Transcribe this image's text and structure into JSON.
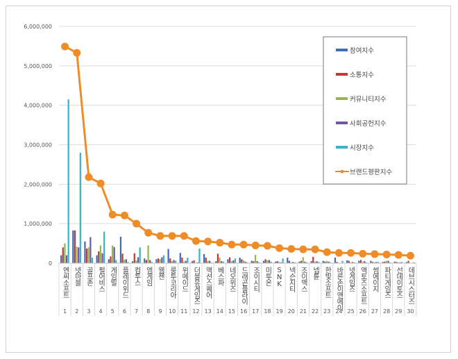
{
  "chart_data": {
    "type": "bar+line",
    "categories": [
      "엔씨소프트",
      "넷마블",
      "골프존",
      "펄어비스",
      "게임빌",
      "플레이위드",
      "컴투스",
      "엠게임",
      "웹젠",
      "룽투코리아",
      "위메이드",
      "더블유게임즈",
      "액션스퀘어",
      "베스파",
      "네오위즈",
      "드래곤플라이",
      "조이시티",
      "미투온",
      "SNK",
      "넥슨지티",
      "조이맥스",
      "넵튠",
      "한빛소프트",
      "바른손이앤에이",
      "넷게임즈",
      "액토즈소프트",
      "썸에이지",
      "파티게임즈",
      "선데이토즈",
      "데브시스터즈"
    ],
    "ranks": [
      "1",
      "2",
      "3",
      "4",
      "5",
      "6",
      "7",
      "8",
      "9",
      "10",
      "11",
      "12",
      "13",
      "14",
      "15",
      "16",
      "17",
      "18",
      "19",
      "20",
      "21",
      "22",
      "23",
      "24",
      "25",
      "26",
      "27",
      "28",
      "29",
      "30"
    ],
    "ylim": [
      0,
      6000000
    ],
    "yticks": [
      "0",
      "1,000,000",
      "2,000,000",
      "3,000,000",
      "4,000,000",
      "5,000,000",
      "6,000,000"
    ],
    "grid": true,
    "legend_position": "top-right",
    "series": [
      {
        "name": "참여지수",
        "kind": "bar",
        "color": "#3f6eb5",
        "values": [
          200000,
          830000,
          550000,
          200000,
          100000,
          670000,
          50000,
          120000,
          100000,
          360000,
          260000,
          50000,
          230000,
          50000,
          100000,
          140000,
          60000,
          60000,
          40000,
          140000,
          40000,
          50000,
          60000,
          140000,
          70000,
          60000,
          60000,
          30000,
          40000,
          30000
        ]
      },
      {
        "name": "소통지수",
        "kind": "bar",
        "color": "#c0393b",
        "values": [
          400000,
          830000,
          370000,
          300000,
          170000,
          240000,
          250000,
          80000,
          120000,
          120000,
          140000,
          70000,
          140000,
          240000,
          150000,
          100000,
          50000,
          100000,
          50000,
          60000,
          60000,
          160000,
          40000,
          30000,
          60000,
          80000,
          30000,
          40000,
          30000,
          60000
        ]
      },
      {
        "name": "커뮤니티지수",
        "kind": "bar",
        "color": "#92b84f",
        "values": [
          500000,
          420000,
          400000,
          450000,
          450000,
          90000,
          70000,
          450000,
          100000,
          50000,
          40000,
          10000,
          60000,
          140000,
          50000,
          70000,
          210000,
          70000,
          30000,
          20000,
          150000,
          40000,
          60000,
          10000,
          20000,
          30000,
          20000,
          60000,
          20000,
          10000
        ]
      },
      {
        "name": "사회공헌지수",
        "kind": "bar",
        "color": "#7256a0",
        "values": [
          200000,
          400000,
          660000,
          250000,
          410000,
          100000,
          150000,
          80000,
          150000,
          80000,
          60000,
          20000,
          60000,
          50000,
          70000,
          40000,
          50000,
          80000,
          20000,
          30000,
          40000,
          50000,
          40000,
          10000,
          30000,
          50000,
          30000,
          60000,
          20000,
          10000
        ]
      },
      {
        "name": "시장지수",
        "kind": "bar",
        "color": "#3fb0c9",
        "values": [
          4150000,
          2800000,
          140000,
          800000,
          80000,
          30000,
          400000,
          30000,
          200000,
          60000,
          140000,
          370000,
          20000,
          40000,
          120000,
          20000,
          20000,
          40000,
          120000,
          20000,
          20000,
          30000,
          20000,
          60000,
          20000,
          20000,
          30000,
          20000,
          30000,
          20000
        ]
      },
      {
        "name": "브랜드평판지수",
        "kind": "line",
        "color": "#f08c28",
        "values": [
          5490000,
          5330000,
          2180000,
          2020000,
          1230000,
          1210000,
          1000000,
          770000,
          690000,
          690000,
          690000,
          560000,
          550000,
          520000,
          470000,
          470000,
          450000,
          440000,
          380000,
          360000,
          350000,
          350000,
          280000,
          260000,
          260000,
          240000,
          230000,
          220000,
          210000,
          190000
        ]
      }
    ]
  }
}
